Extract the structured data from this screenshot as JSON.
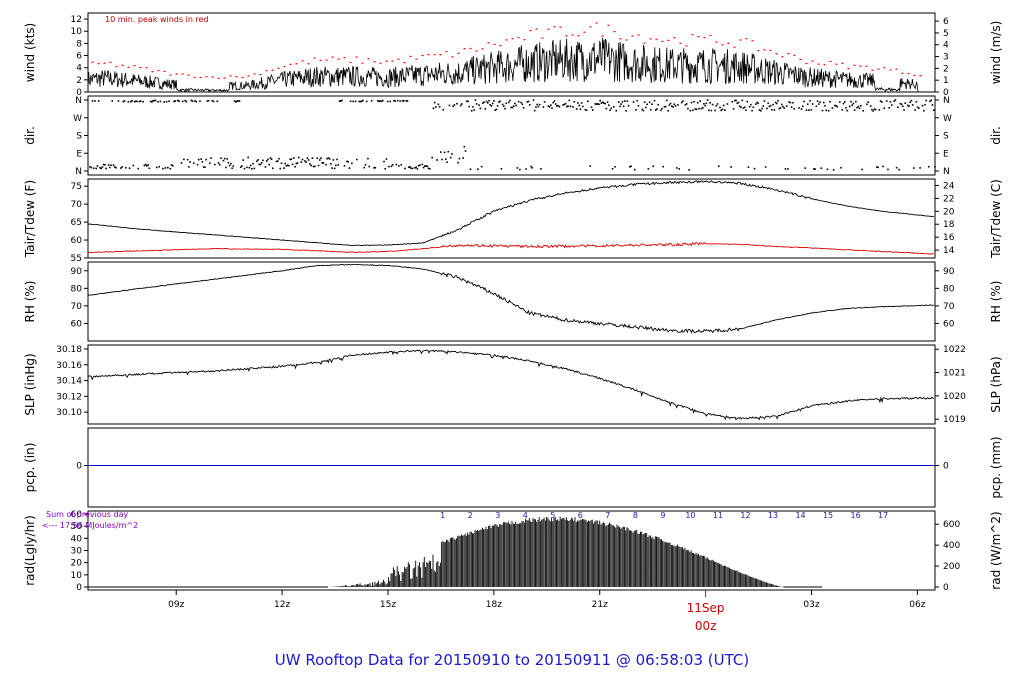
{
  "footer": "UW Rooftop Data for 20150910  to  20150911 @ 06:58:03  (UTC)",
  "x_axis": {
    "ticks": [
      "09z",
      "12z",
      "15z",
      "18z",
      "21z",
      "03z",
      "06z"
    ],
    "day_label": "11Sep",
    "day_sub": "00z"
  },
  "colors": {
    "series": "#000000",
    "dew": "#dd0000",
    "peak": "#ff0000",
    "pcp": "#0000cc",
    "footer": "#1a1acc",
    "note": "#8800cc"
  },
  "chart_data": [
    {
      "type": "line",
      "name": "wind",
      "ylabel_left": "wind (kts)",
      "ylabel_right": "wind (m/s)",
      "ylim": [
        0,
        13
      ],
      "yticks_left": [
        "0",
        "2",
        "4",
        "6",
        "8",
        "10",
        "12"
      ],
      "yticks_right": [
        "0",
        "1",
        "2",
        "3",
        "4",
        "5",
        "6"
      ],
      "annotation": "10 min. peak winds in red",
      "envelope_x_hours": [
        6.5,
        7,
        8,
        9,
        10,
        11,
        12,
        13,
        14,
        15,
        16,
        17,
        18,
        19,
        20,
        21,
        22,
        23,
        24,
        25,
        26,
        27,
        28,
        29,
        30.5
      ],
      "envelope_y_kts": [
        2.6,
        2.8,
        2.2,
        1.5,
        1.2,
        1.3,
        2.5,
        3.2,
        3.2,
        3.0,
        3.5,
        4.0,
        5.0,
        6.0,
        6.5,
        6.8,
        6.0,
        5.5,
        5.5,
        5.2,
        4.0,
        3.0,
        2.5,
        2.2,
        1.2
      ]
    },
    {
      "type": "scatter",
      "name": "dir",
      "ylabel_left": "dir.",
      "ylabel_right": "dir.",
      "yticks_left": [
        "N",
        "E",
        "S",
        "W",
        "N"
      ],
      "yticks_right": [
        "N",
        "E",
        "S",
        "W",
        "N"
      ]
    },
    {
      "type": "line",
      "name": "temperature",
      "ylabel_left": "Tair/Tdew (F)",
      "ylabel_right": "Tair/Tdew (C)",
      "ylim": [
        55,
        77
      ],
      "yticks_left": [
        "55",
        "60",
        "65",
        "70",
        "75"
      ],
      "yticks_right": [
        "14",
        "16",
        "18",
        "20",
        "22",
        "24"
      ],
      "series": [
        {
          "x": [
            6.5,
            8,
            10,
            12,
            14,
            15,
            16,
            17,
            18,
            19,
            20,
            21,
            22,
            23,
            24,
            25,
            26,
            27,
            28,
            29,
            30.5
          ],
          "values": [
            64.5,
            63,
            61.5,
            60,
            58.5,
            58.6,
            59.2,
            63,
            68,
            71,
            73,
            74.5,
            75.5,
            76,
            76.3,
            75.8,
            74,
            71.5,
            69.5,
            68,
            66.5
          ]
        },
        {
          "x": [
            6.5,
            8,
            10,
            12,
            14,
            15,
            16,
            17,
            18,
            19,
            20,
            21,
            22,
            23,
            24,
            25,
            26,
            27,
            28,
            29,
            30.5
          ],
          "values": [
            56.5,
            57,
            57.6,
            57.4,
            56.6,
            56.8,
            57.6,
            58.6,
            58.4,
            58.2,
            58.3,
            58.4,
            58.6,
            58.7,
            59.0,
            58.8,
            58.2,
            57.8,
            57.3,
            56.8,
            56.1
          ]
        }
      ]
    },
    {
      "type": "line",
      "name": "rh",
      "ylabel_left": "RH (%)",
      "ylabel_right": "RH (%)",
      "ylim": [
        50,
        95
      ],
      "yticks_left": [
        "60",
        "70",
        "80",
        "90"
      ],
      "yticks_right": [
        "60",
        "70",
        "80",
        "90"
      ],
      "x": [
        6.5,
        8,
        10,
        12,
        13,
        14,
        15,
        16,
        17,
        18,
        19,
        20,
        21,
        22,
        23,
        24,
        25,
        26,
        27,
        28,
        29,
        30.5
      ],
      "values": [
        76,
        80,
        85,
        90,
        93,
        93.5,
        93,
        91,
        86,
        77,
        66,
        62,
        60,
        58,
        56,
        55.5,
        57,
        62,
        66,
        68.5,
        69.5,
        70.5
      ]
    },
    {
      "type": "line",
      "name": "slp",
      "ylabel_left": "SLP (inHg)",
      "ylabel_right": "SLP (hPa)",
      "ylim": [
        30.085,
        30.185
      ],
      "yticks_left": [
        "30.10",
        "30.12",
        "30.14",
        "30.16",
        "30.18"
      ],
      "yticks_right": [
        "1019",
        "1020",
        "1021",
        "1022"
      ],
      "x": [
        6.5,
        8,
        10,
        12,
        13,
        14,
        15,
        16,
        17,
        18,
        19,
        20,
        21,
        22,
        23,
        24,
        25,
        26,
        27,
        28,
        29,
        30.5
      ],
      "values": [
        30.145,
        30.148,
        30.152,
        30.158,
        30.163,
        30.172,
        30.176,
        30.178,
        30.176,
        30.172,
        30.165,
        30.155,
        30.143,
        30.128,
        30.112,
        30.098,
        30.092,
        30.095,
        30.108,
        30.114,
        30.117,
        30.118
      ]
    },
    {
      "type": "line",
      "name": "pcp",
      "ylabel_left": "pcp. (in)",
      "ylabel_right": "pcp. (mm)",
      "yticks_left": [
        "0"
      ],
      "yticks_right": [
        "0"
      ],
      "values": [
        0
      ]
    },
    {
      "type": "area",
      "name": "radiation",
      "ylabel_left": "rad(Lgly/hr)",
      "ylabel_right": "rad (W/m^2)",
      "ylim": [
        0,
        60
      ],
      "yticks_left": [
        "0",
        "10",
        "20",
        "30",
        "40",
        "50",
        "60"
      ],
      "yticks_right": [
        "0",
        "200",
        "400",
        "600"
      ],
      "note_line1": "Sum of previous day",
      "note_line2": "<--- 17.56 MJoules/m^2",
      "hour_labels": [
        "1",
        "2",
        "3",
        "4",
        "5",
        "6",
        "7",
        "8",
        "9",
        "10",
        "11",
        "12",
        "13",
        "14",
        "15",
        "16",
        "17"
      ]
    }
  ]
}
